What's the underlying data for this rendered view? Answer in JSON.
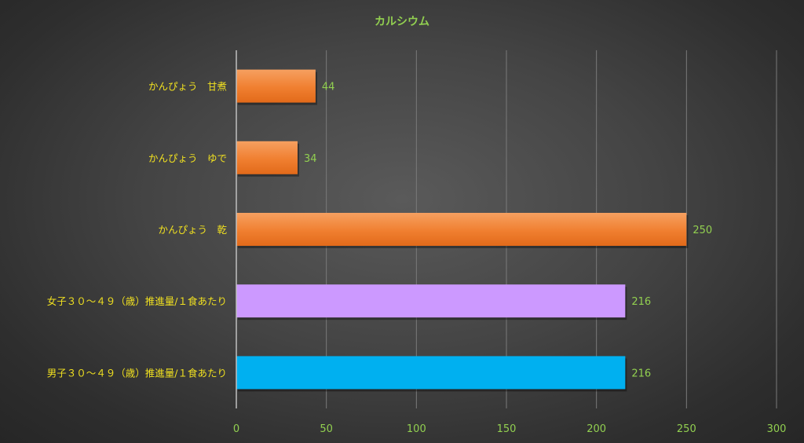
{
  "chart_data": {
    "type": "bar",
    "orientation": "horizontal",
    "title": "カルシウム",
    "categories": [
      "かんぴょう　甘煮",
      "かんぴょう　ゆで",
      "かんぴょう　乾",
      "女子３０～４９（歳）推進量/１食あたり",
      "男子３０～４９（歳）推進量/１食あたり"
    ],
    "values": [
      44,
      34,
      250,
      216,
      216
    ],
    "bar_colors": [
      "#f07f30",
      "#f07f30",
      "#f07f30",
      "#cc99ff",
      "#00b0f0"
    ],
    "xlim": [
      0,
      300
    ],
    "x_ticks": [
      "0",
      "50",
      "100",
      "150",
      "200",
      "250",
      "300"
    ],
    "xlabel": "",
    "ylabel": "",
    "grid": "vertical",
    "data_labels": true,
    "legend": "none"
  },
  "colors": {
    "title": "#92d050",
    "category_label": "#f0e020",
    "tick_label": "#92d050",
    "data_label": "#92d050",
    "gridline": "#7a7a7a",
    "axis_line": "#bfbfbf"
  }
}
